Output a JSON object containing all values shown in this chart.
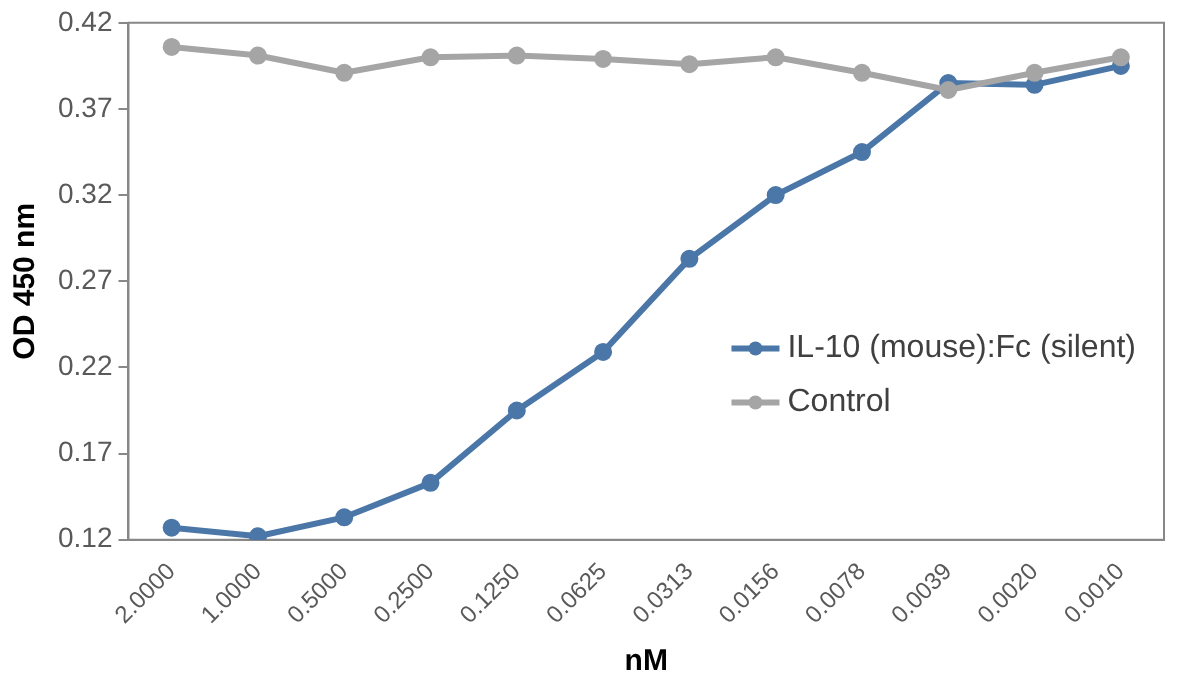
{
  "chart_data": {
    "type": "line",
    "xlabel": "nM",
    "ylabel": "OD 450 nm",
    "categories": [
      "2.0000",
      "1.0000",
      "0.5000",
      "0.2500",
      "0.1250",
      "0.0625",
      "0.0313",
      "0.0156",
      "0.0078",
      "0.0039",
      "0.0020",
      "0.0010"
    ],
    "series": [
      {
        "name": "IL-10 (mouse):Fc (silent)",
        "color": "#4a76a8",
        "values": [
          0.127,
          0.122,
          0.133,
          0.153,
          0.195,
          0.229,
          0.283,
          0.32,
          0.345,
          0.385,
          0.384,
          0.395
        ]
      },
      {
        "name": "Control",
        "color": "#a5a5a5",
        "values": [
          0.406,
          0.401,
          0.391,
          0.4,
          0.401,
          0.399,
          0.396,
          0.4,
          0.391,
          0.381,
          0.391,
          0.4
        ]
      }
    ],
    "ylim": [
      0.12,
      0.42
    ],
    "yticks": [
      0.12,
      0.17,
      0.22,
      0.27,
      0.32,
      0.37,
      0.42
    ],
    "grid": false,
    "legend": "right",
    "marker": "circle",
    "line_style": "solid"
  }
}
